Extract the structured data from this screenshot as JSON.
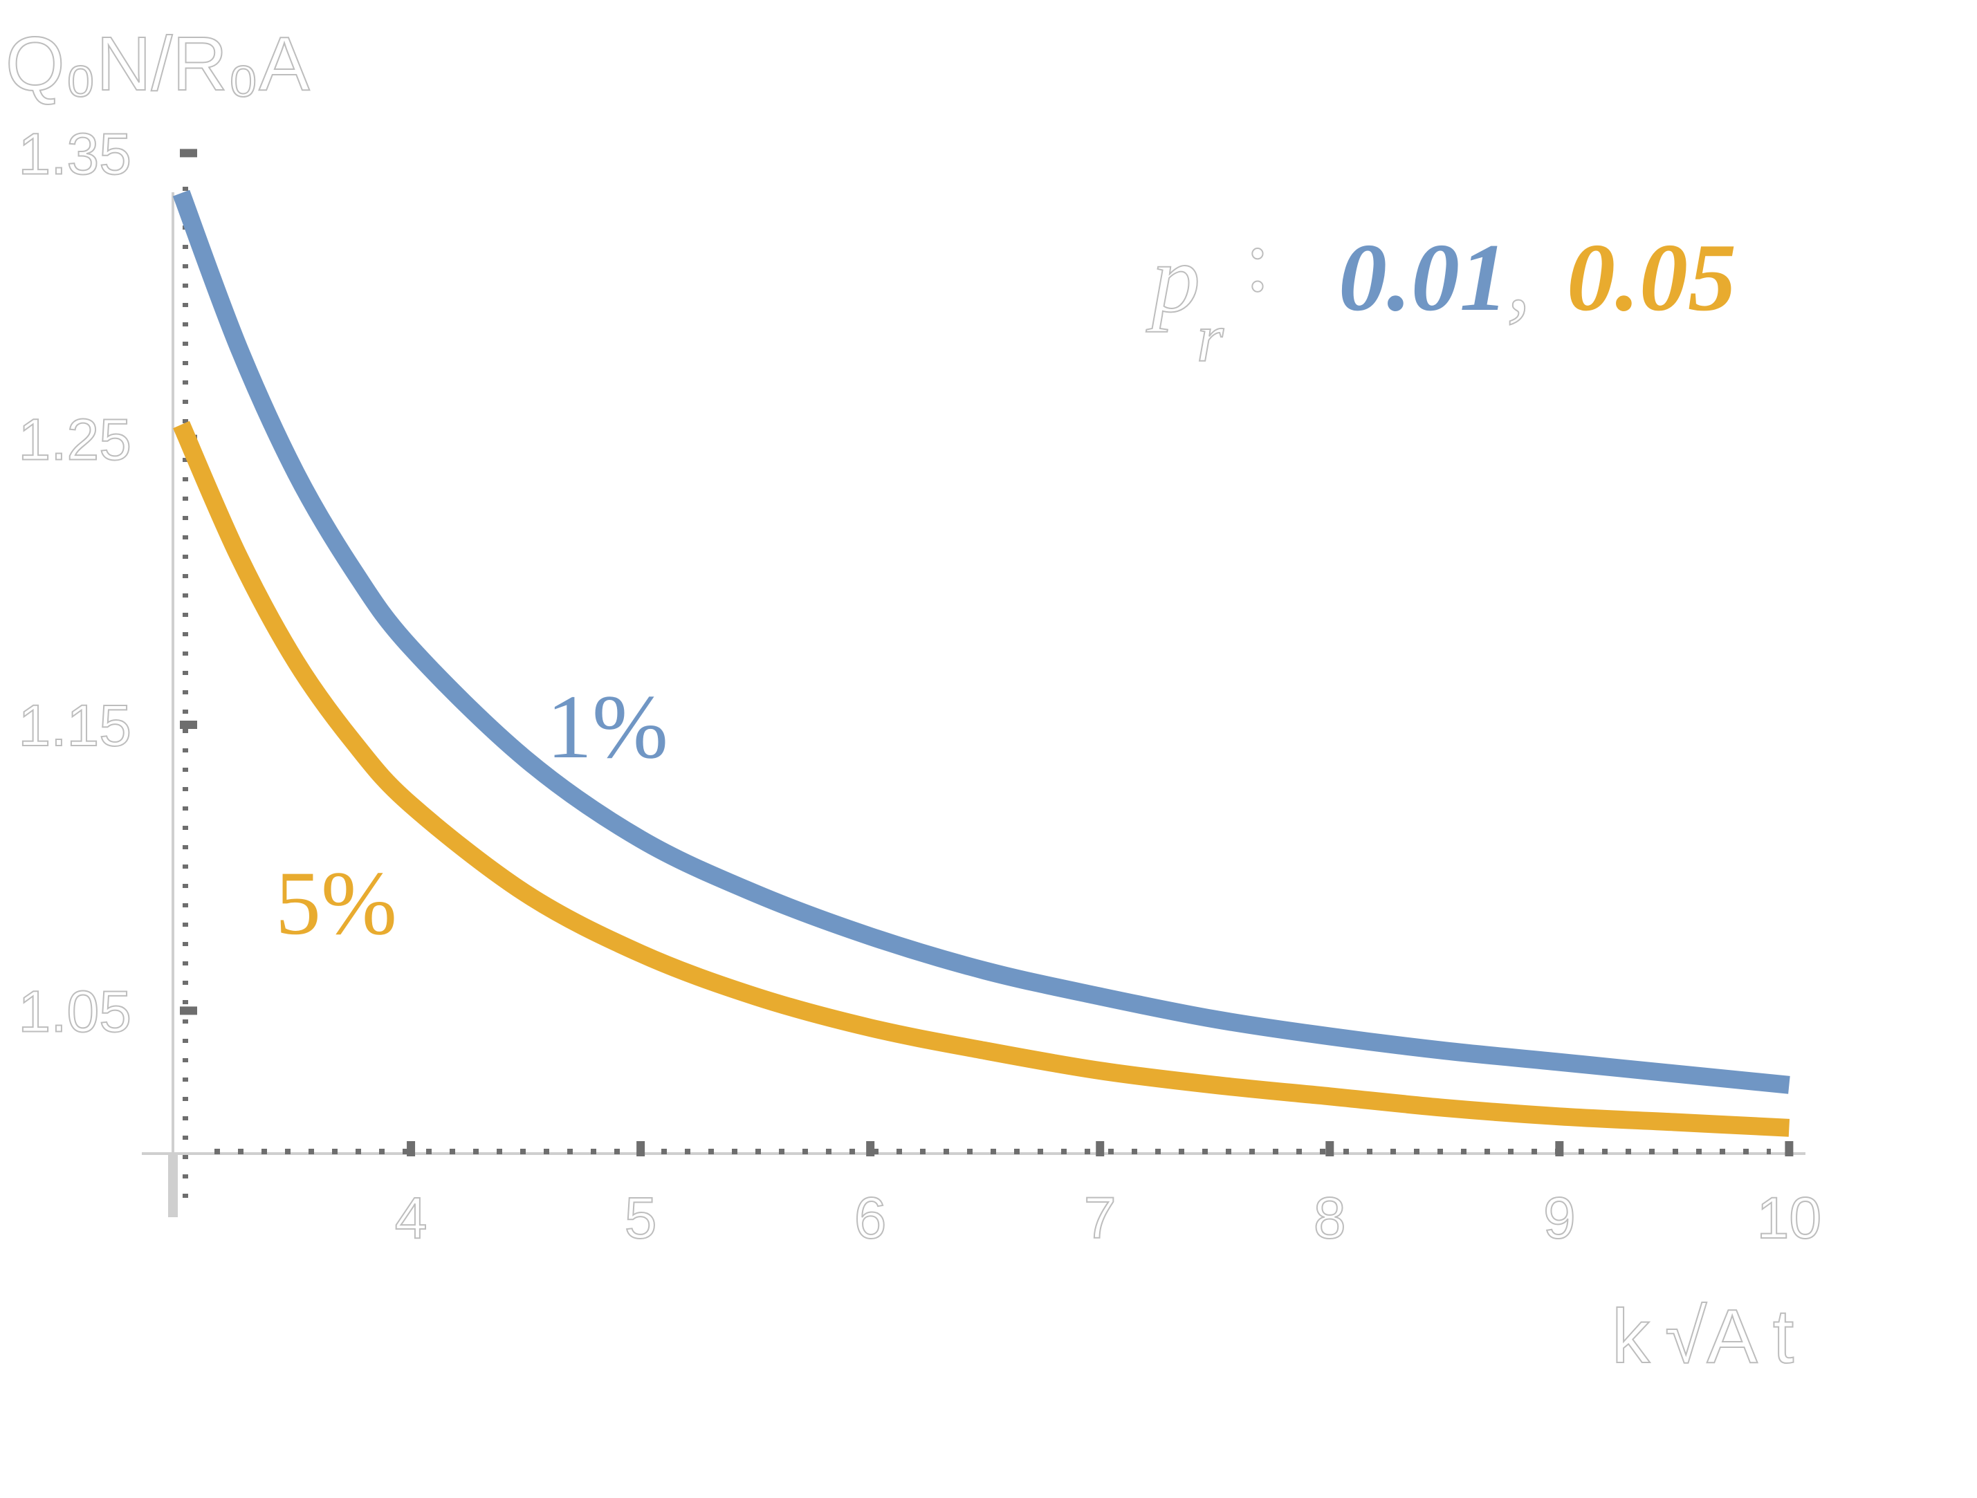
{
  "chart_data": {
    "type": "line",
    "ylabel": "Q₀N/R₀A",
    "xlabel": "k √A t",
    "xlim": [
      3,
      10.05
    ],
    "ylim": [
      1.0,
      1.36
    ],
    "x_ticks": [
      4,
      5,
      6,
      7,
      8,
      9,
      10
    ],
    "x_tick_labels": [
      "4",
      "5",
      "6",
      "7",
      "8",
      "9",
      "10"
    ],
    "y_ticks": [
      1.05,
      1.15,
      1.25,
      1.35
    ],
    "y_tick_labels": [
      "1.05",
      "1.15",
      "1.25",
      "1.35"
    ],
    "grid": false,
    "legend": {
      "prefix_symbol": "p",
      "prefix_subscript": "r",
      "prefix_suffix": ":",
      "separator": ",",
      "entries": [
        "0.01",
        "0.05"
      ],
      "placement": "top-right"
    },
    "annotations": [
      "1%",
      "5%"
    ],
    "series": [
      {
        "name": "0.01",
        "color": "#7096c4",
        "x": [
          3.0,
          3.25,
          3.5,
          3.75,
          4.0,
          4.5,
          5.0,
          5.5,
          6.0,
          6.5,
          7.0,
          7.5,
          8.0,
          8.5,
          9.0,
          9.5,
          10.0
        ],
        "y": [
          1.336,
          1.282,
          1.238,
          1.204,
          1.177,
          1.138,
          1.11,
          1.091,
          1.076,
          1.064,
          1.055,
          1.047,
          1.041,
          1.036,
          1.032,
          1.028,
          1.024
        ]
      },
      {
        "name": "0.05",
        "color": "#e8ab2f",
        "x": [
          3.0,
          3.25,
          3.5,
          3.75,
          4.0,
          4.5,
          5.0,
          5.5,
          6.0,
          6.5,
          7.0,
          7.5,
          8.0,
          8.5,
          9.0,
          9.5,
          10.0
        ],
        "y": [
          1.255,
          1.209,
          1.172,
          1.144,
          1.122,
          1.091,
          1.07,
          1.055,
          1.044,
          1.036,
          1.029,
          1.024,
          1.02,
          1.016,
          1.013,
          1.011,
          1.009
        ]
      }
    ]
  }
}
